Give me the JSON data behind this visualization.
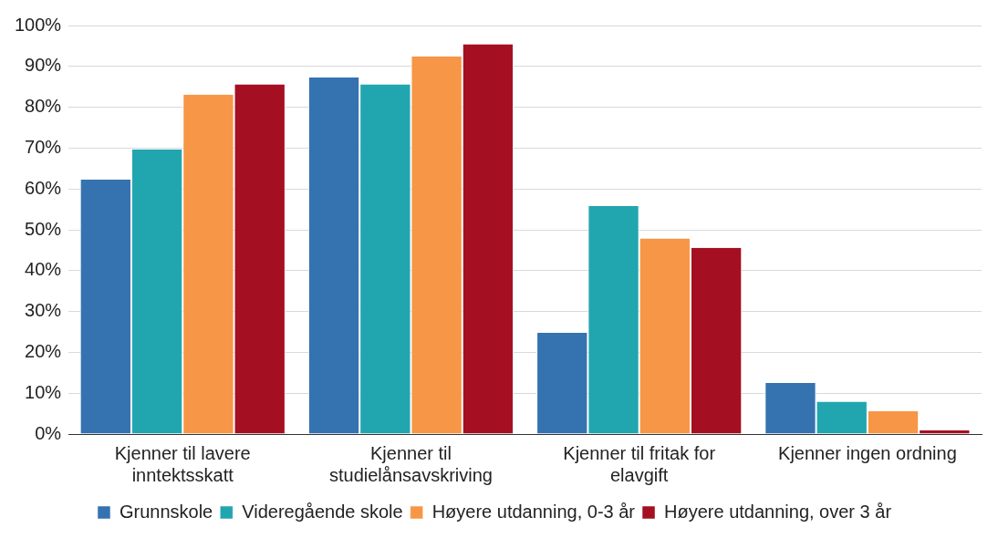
{
  "chart_data": {
    "type": "bar",
    "categories": [
      "Kjenner til lavere inntektsskatt",
      "Kjenner til studielånsavskriving",
      "Kjenner til fritak for elavgift",
      "Kjenner ingen ordning"
    ],
    "series": [
      {
        "name": "Grunnskole",
        "color": "#3572b0",
        "values": [
          62.3,
          87.3,
          24.8,
          12.5
        ]
      },
      {
        "name": "Videregående skole",
        "color": "#21a6b0",
        "values": [
          69.7,
          85.6,
          55.8,
          7.9
        ]
      },
      {
        "name": "Høyere utdanning, 0-3 år",
        "color": "#f79646",
        "values": [
          83.1,
          92.4,
          47.9,
          5.6
        ]
      },
      {
        "name": "Høyere utdanning, over 3 år",
        "color": "#a50f22",
        "values": [
          85.6,
          95.4,
          45.6,
          0.9
        ]
      }
    ],
    "ylim": [
      0,
      100
    ],
    "yticks": [
      {
        "value": 0,
        "label": "0%"
      },
      {
        "value": 10,
        "label": "10%"
      },
      {
        "value": 20,
        "label": "20%"
      },
      {
        "value": 30,
        "label": "30%"
      },
      {
        "value": 40,
        "label": "40%"
      },
      {
        "value": 50,
        "label": "50%"
      },
      {
        "value": 60,
        "label": "60%"
      },
      {
        "value": 70,
        "label": "70%"
      },
      {
        "value": 80,
        "label": "80%"
      },
      {
        "value": 90,
        "label": "90%"
      },
      {
        "value": 100,
        "label": "100%"
      }
    ],
    "grid": "y",
    "legend": "bottom"
  }
}
